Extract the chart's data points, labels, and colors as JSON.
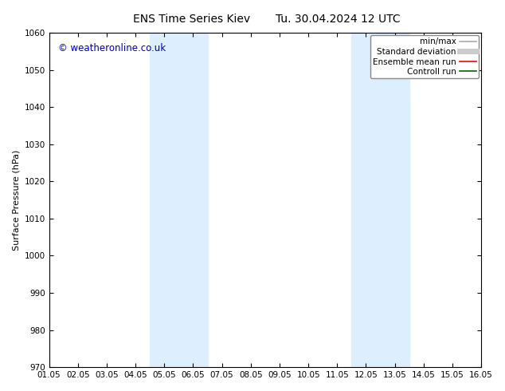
{
  "title_left": "ENS Time Series Kiev",
  "title_right": "Tu. 30.04.2024 12 UTC",
  "ylabel": "Surface Pressure (hPa)",
  "ylim": [
    970,
    1060
  ],
  "yticks": [
    970,
    980,
    990,
    1000,
    1010,
    1020,
    1030,
    1040,
    1050,
    1060
  ],
  "xlim": [
    0,
    15
  ],
  "xtick_labels": [
    "01.05",
    "02.05",
    "03.05",
    "04.05",
    "05.05",
    "06.05",
    "07.05",
    "08.05",
    "09.05",
    "10.05",
    "11.05",
    "12.05",
    "13.05",
    "14.05",
    "15.05",
    "16.05"
  ],
  "xtick_positions": [
    0,
    1,
    2,
    3,
    4,
    5,
    6,
    7,
    8,
    9,
    10,
    11,
    12,
    13,
    14,
    15
  ],
  "shaded_bands": [
    {
      "xmin": 3.5,
      "xmax": 5.5
    },
    {
      "xmin": 10.5,
      "xmax": 12.5
    }
  ],
  "shade_color": "#ddeeff",
  "copyright_text": "© weatheronline.co.uk",
  "copyright_color": "#0000bb",
  "legend_items": [
    {
      "label": "min/max",
      "color": "#aaaaaa",
      "lw": 1.2
    },
    {
      "label": "Standard deviation",
      "color": "#cccccc",
      "lw": 5
    },
    {
      "label": "Ensemble mean run",
      "color": "#ff0000",
      "lw": 1.2
    },
    {
      "label": "Controll run",
      "color": "#006600",
      "lw": 1.2
    }
  ],
  "bg_color": "#ffffff",
  "plot_bg_color": "#ffffff",
  "border_color": "#000000",
  "tick_color": "#000000",
  "label_color": "#000000",
  "title_fontsize": 10,
  "axis_label_fontsize": 8,
  "tick_fontsize": 7.5,
  "legend_fontsize": 7.5,
  "copyright_fontsize": 8.5
}
